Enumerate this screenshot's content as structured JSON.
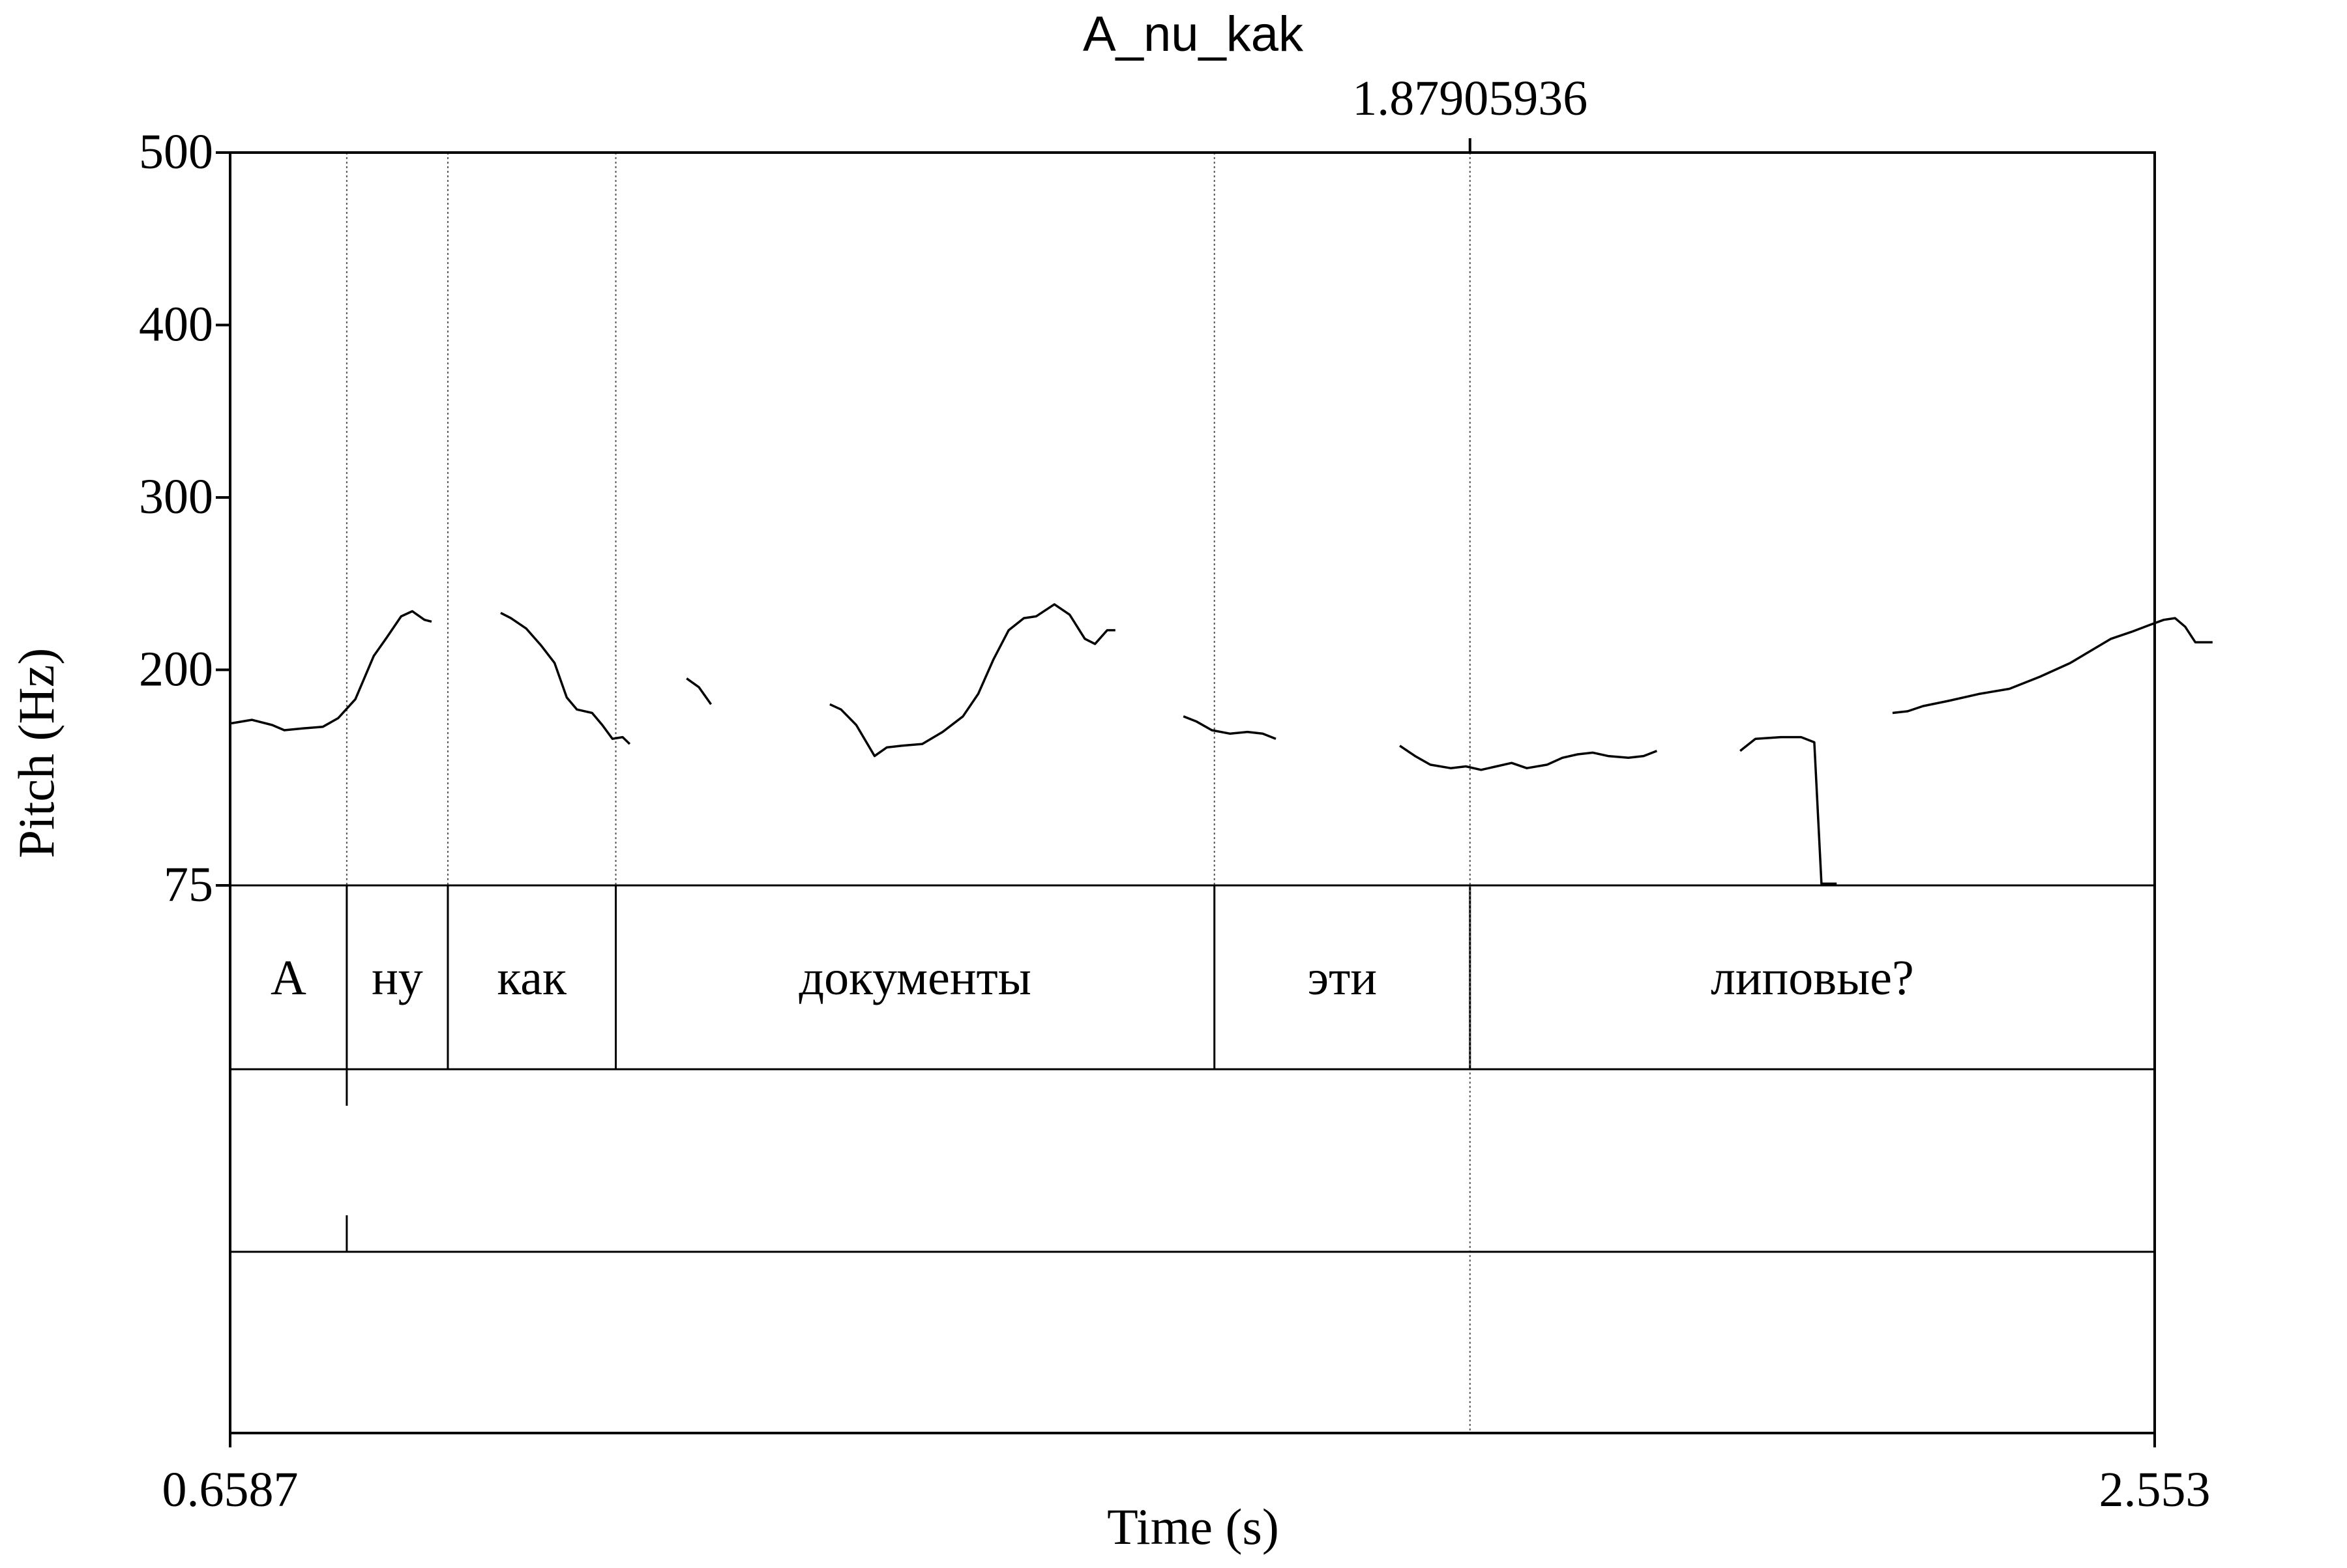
{
  "chart_data": {
    "type": "line",
    "title": "A_nu_kak",
    "xlabel": "Time (s)",
    "ylabel": "Pitch (Hz)",
    "xlim": [
      0.6587,
      2.553
    ],
    "ylim": [
      75,
      500
    ],
    "x_tick_labels": [
      "0.6587",
      "2.553"
    ],
    "y_ticks": [
      75,
      200,
      300,
      400,
      500
    ],
    "y_tick_labels": [
      "75",
      "200",
      "300",
      "400",
      "500"
    ],
    "cursor": {
      "time": 1.87905936,
      "label": "1.87905936"
    },
    "series": [
      {
        "type": "pitch-contour",
        "segments": [
          [
            [
              0.66,
              169
            ],
            [
              0.68,
              171
            ],
            [
              0.7,
              168
            ],
            [
              0.712,
              165
            ],
            [
              0.73,
              166
            ],
            [
              0.75,
              167
            ],
            [
              0.765,
              172
            ],
            [
              0.782,
              183
            ],
            [
              0.8,
              208
            ],
            [
              0.812,
              218
            ],
            [
              0.827,
              231
            ],
            [
              0.838,
              234
            ],
            [
              0.85,
              229
            ],
            [
              0.857,
              228
            ]
          ],
          [
            [
              0.925,
              233
            ],
            [
              0.935,
              230
            ],
            [
              0.95,
              224
            ],
            [
              0.965,
              214
            ],
            [
              0.978,
              204
            ],
            [
              0.99,
              184
            ],
            [
              1.0,
              177
            ],
            [
              1.015,
              175
            ],
            [
              1.025,
              168
            ],
            [
              1.035,
              160
            ],
            [
              1.045,
              161
            ],
            [
              1.052,
              157
            ]
          ],
          [
            [
              1.108,
              195
            ],
            [
              1.12,
              190
            ],
            [
              1.132,
              180
            ]
          ],
          [
            [
              1.249,
              180
            ],
            [
              1.26,
              177
            ],
            [
              1.275,
              168
            ],
            [
              1.293,
              150
            ],
            [
              1.305,
              155
            ],
            [
              1.32,
              156
            ],
            [
              1.34,
              157
            ],
            [
              1.36,
              164
            ],
            [
              1.38,
              173
            ],
            [
              1.395,
              186
            ],
            [
              1.41,
              206
            ],
            [
              1.425,
              223
            ],
            [
              1.44,
              230
            ],
            [
              1.452,
              231
            ],
            [
              1.47,
              238
            ],
            [
              1.485,
              232
            ],
            [
              1.5,
              218
            ],
            [
              1.51,
              215
            ],
            [
              1.522,
              223
            ],
            [
              1.53,
              223
            ]
          ],
          [
            [
              1.597,
              173
            ],
            [
              1.61,
              170
            ],
            [
              1.625,
              165
            ],
            [
              1.643,
              163
            ],
            [
              1.66,
              164
            ],
            [
              1.675,
              163
            ],
            [
              1.688,
              160
            ]
          ],
          [
            [
              1.81,
              156
            ],
            [
              1.825,
              150
            ],
            [
              1.84,
              145
            ],
            [
              1.86,
              143
            ],
            [
              1.875,
              144
            ],
            [
              1.89,
              142
            ],
            [
              1.905,
              144
            ],
            [
              1.92,
              146
            ],
            [
              1.935,
              143
            ],
            [
              1.955,
              145
            ],
            [
              1.97,
              149
            ],
            [
              1.985,
              151
            ],
            [
              2.0,
              152
            ],
            [
              2.015,
              150
            ],
            [
              2.035,
              149
            ],
            [
              2.05,
              150
            ],
            [
              2.063,
              153
            ]
          ],
          [
            [
              2.145,
              153
            ],
            [
              2.16,
              160
            ],
            [
              2.185,
              161
            ],
            [
              2.205,
              161
            ],
            [
              2.218,
              158
            ],
            [
              2.225,
              76
            ],
            [
              2.24,
              76
            ]
          ],
          [
            [
              2.295,
              175
            ],
            [
              2.31,
              176
            ],
            [
              2.325,
              179
            ],
            [
              2.35,
              182
            ],
            [
              2.38,
              186
            ],
            [
              2.41,
              189
            ],
            [
              2.44,
              196
            ],
            [
              2.47,
              204
            ],
            [
              2.49,
              211
            ],
            [
              2.51,
              218
            ],
            [
              2.53,
              222
            ],
            [
              2.548,
              226
            ],
            [
              2.562,
              229
            ],
            [
              2.573,
              230
            ],
            [
              2.583,
              225
            ],
            [
              2.593,
              216
            ],
            [
              2.61,
              216
            ]
          ]
        ]
      }
    ]
  },
  "textgrid": {
    "tier1": {
      "boundaries": [
        0.7735,
        0.873,
        1.0383,
        1.6275,
        1.87905936
      ],
      "intervals": [
        {
          "start": 0.6587,
          "end": 0.7735,
          "text": "А"
        },
        {
          "start": 0.7735,
          "end": 0.873,
          "text": "ну"
        },
        {
          "start": 0.873,
          "end": 1.0383,
          "text": "как"
        },
        {
          "start": 1.0383,
          "end": 1.6275,
          "text": "документы"
        },
        {
          "start": 1.6275,
          "end": 1.87905936,
          "text": "эти"
        },
        {
          "start": 1.87905936,
          "end": 2.553,
          "text": "липовые?"
        }
      ]
    },
    "tier2": {
      "boundaries": [
        0.7735
      ],
      "intervals": [
        {
          "start": 0.6587,
          "end": 2.553,
          "text": ""
        }
      ]
    }
  }
}
